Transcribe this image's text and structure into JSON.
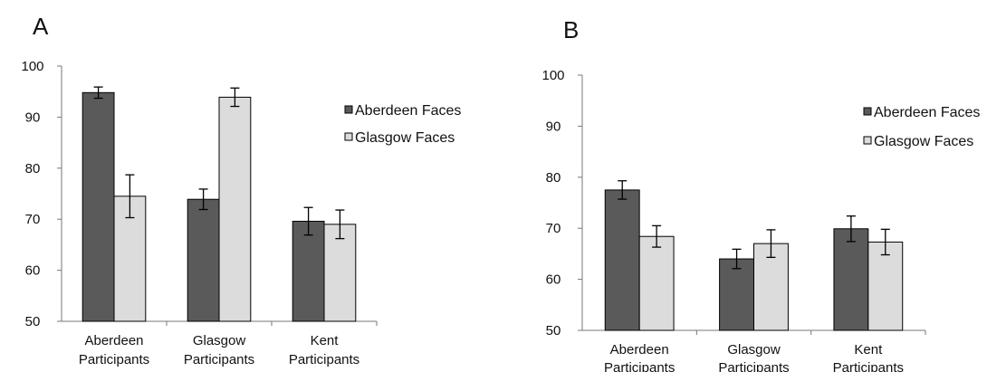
{
  "chart_data": [
    {
      "type": "bar",
      "panel_label": "A",
      "categories": [
        "Aberdeen\nParticipants",
        "Glasgow\nParticipants",
        "Kent\nParticipants"
      ],
      "series": [
        {
          "name": "Aberdeen Faces",
          "color": "#5a5a5a",
          "values": [
            94.8,
            73.9,
            69.6
          ],
          "errors": [
            1.1,
            2.0,
            2.7
          ]
        },
        {
          "name": "Glasgow Faces",
          "color": "#dcdcdc",
          "values": [
            74.5,
            93.9,
            69.0
          ],
          "errors": [
            4.2,
            1.8,
            2.8
          ]
        }
      ],
      "ylim": [
        50,
        100
      ],
      "yticks": [
        50,
        60,
        70,
        80,
        90,
        100
      ],
      "grid": false,
      "legend": "right"
    },
    {
      "type": "bar",
      "panel_label": "B",
      "categories": [
        "Aberdeen\nParticipants",
        "Glasgow\nParticipants",
        "Kent\nParticipants"
      ],
      "series": [
        {
          "name": "Aberdeen Faces",
          "color": "#5a5a5a",
          "values": [
            77.5,
            64.0,
            69.9
          ],
          "errors": [
            1.8,
            1.9,
            2.5
          ]
        },
        {
          "name": "Glasgow Faces",
          "color": "#dcdcdc",
          "values": [
            68.4,
            67.0,
            67.3
          ],
          "errors": [
            2.1,
            2.7,
            2.5
          ]
        }
      ],
      "ylim": [
        50,
        100
      ],
      "yticks": [
        50,
        60,
        70,
        80,
        90,
        100
      ],
      "grid": false,
      "legend": "top-right"
    }
  ]
}
